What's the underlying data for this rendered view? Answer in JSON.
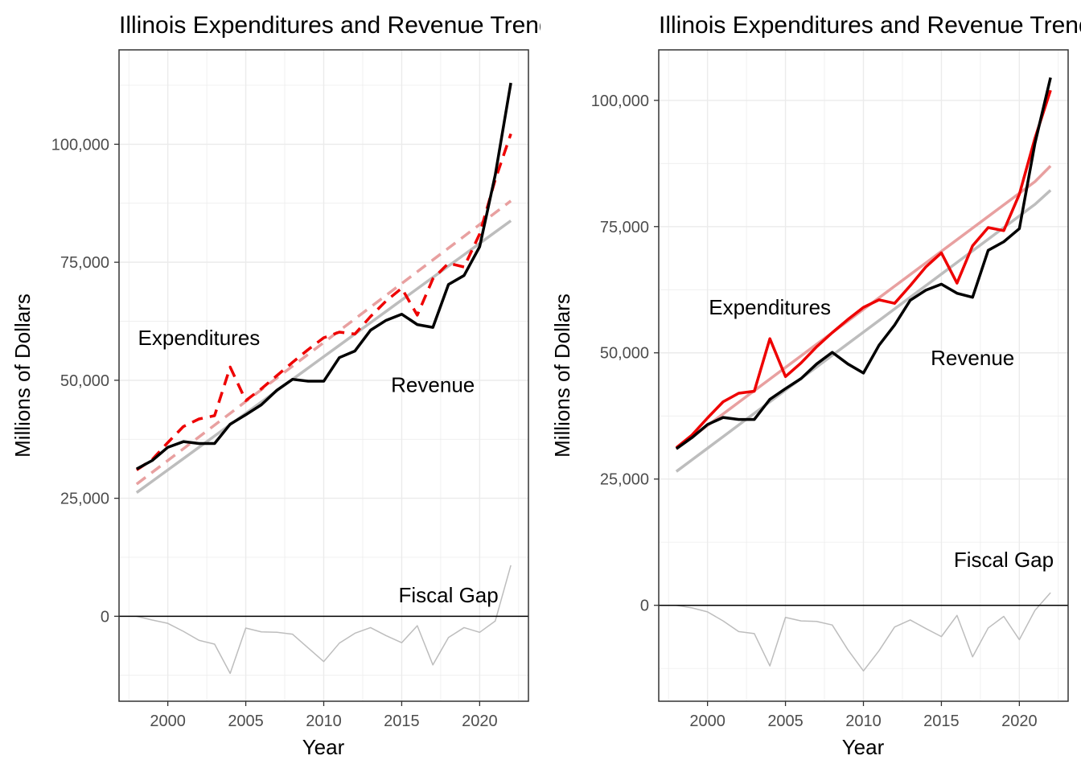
{
  "chart_data": [
    {
      "type": "line",
      "title": "Illinois Expenditures and Revenue Trends",
      "xlabel": "Year",
      "ylabel": "Millions of Dollars",
      "xlim": [
        1998,
        2022
      ],
      "ylim": [
        -18000,
        120000
      ],
      "x_ticks": [
        2000,
        2005,
        2010,
        2015,
        2020
      ],
      "y_ticks": [
        0,
        25000,
        50000,
        75000,
        100000
      ],
      "y_tick_labels": [
        "0",
        "25,000",
        "50,000",
        "75,000",
        "100,000"
      ],
      "grid": true,
      "annotations": [
        {
          "text": "Expenditures",
          "x": 2002,
          "y": 59000
        },
        {
          "text": "Revenue",
          "x": 2017,
          "y": 49000
        },
        {
          "text": "Fiscal Gap",
          "x": 2018,
          "y": 4500
        }
      ],
      "x": [
        1998,
        1999,
        2000,
        2001,
        2002,
        2003,
        2004,
        2005,
        2006,
        2007,
        2008,
        2009,
        2010,
        2011,
        2012,
        2013,
        2014,
        2015,
        2016,
        2017,
        2018,
        2019,
        2020,
        2021,
        2022
      ],
      "series": [
        {
          "key": "expenditures_trend",
          "color": "#e8a0a0",
          "dashed": true,
          "width": 3.5,
          "values": [
            28000,
            30500,
            33000,
            35500,
            38000,
            40500,
            43000,
            45500,
            48000,
            50500,
            53000,
            55500,
            58000,
            60500,
            63000,
            65500,
            68000,
            70500,
            73000,
            75500,
            78000,
            80500,
            83000,
            85500,
            88000
          ]
        },
        {
          "key": "revenue_trend",
          "color": "#bdbdbd",
          "dashed": false,
          "width": 3.5,
          "values": [
            26200,
            28600,
            31000,
            33400,
            35800,
            38200,
            40600,
            43000,
            45400,
            47800,
            50200,
            52600,
            55000,
            57400,
            59800,
            62200,
            64600,
            67000,
            69400,
            71800,
            74200,
            76600,
            79000,
            81400,
            83800
          ]
        },
        {
          "key": "expenditures",
          "color": "#ee0000",
          "dashed": true,
          "width": 3.5,
          "values": [
            31000,
            33200,
            36800,
            40200,
            41800,
            42500,
            52800,
            45700,
            48200,
            51000,
            53800,
            56500,
            59000,
            60200,
            59800,
            63500,
            66800,
            69500,
            63800,
            71500,
            74800,
            74000,
            81000,
            92500,
            102200
          ]
        },
        {
          "key": "revenue",
          "color": "#000000",
          "dashed": false,
          "width": 3.5,
          "values": [
            31200,
            33000,
            35800,
            37000,
            36600,
            36600,
            40700,
            42700,
            44800,
            47900,
            50200,
            49800,
            49800,
            54800,
            56200,
            60600,
            62700,
            64000,
            61800,
            61200,
            70300,
            72200,
            78300,
            93500,
            113000
          ]
        },
        {
          "key": "fiscal_gap",
          "color": "#bdbdbd",
          "dashed": false,
          "width": 1.5,
          "values": [
            0,
            -800,
            -1500,
            -3200,
            -5100,
            -5900,
            -12100,
            -2500,
            -3300,
            -3400,
            -3800,
            -6700,
            -9600,
            -5700,
            -3600,
            -2400,
            -4100,
            -5600,
            -2000,
            -10300,
            -4500,
            -2400,
            -3400,
            -1000,
            10800
          ]
        }
      ]
    },
    {
      "type": "line",
      "title": "Illinois Expenditures and Revenue Trends",
      "xlabel": "Year",
      "ylabel": "Millions of Dollars",
      "xlim": [
        1998,
        2022
      ],
      "ylim": [
        -19000,
        110000
      ],
      "x_ticks": [
        2000,
        2005,
        2010,
        2015,
        2020
      ],
      "y_ticks": [
        0,
        25000,
        50000,
        75000,
        100000
      ],
      "y_tick_labels": [
        "0",
        "25,000",
        "50,000",
        "75,000",
        "100,000"
      ],
      "grid": true,
      "annotations": [
        {
          "text": "Expenditures",
          "x": 2004,
          "y": 59000
        },
        {
          "text": "Revenue",
          "x": 2017,
          "y": 49000
        },
        {
          "text": "Fiscal Gap",
          "x": 2019,
          "y": 9000
        }
      ],
      "x": [
        1998,
        1999,
        2000,
        2001,
        2002,
        2003,
        2004,
        2005,
        2006,
        2007,
        2008,
        2009,
        2010,
        2011,
        2012,
        2013,
        2014,
        2015,
        2016,
        2017,
        2018,
        2019,
        2020,
        2021,
        2022
      ],
      "series": [
        {
          "key": "expenditures_trend",
          "color": "#e8a0a0",
          "dashed": false,
          "width": 3.5,
          "values": [
            31000,
            33300,
            35600,
            37900,
            40200,
            42500,
            44800,
            47100,
            49400,
            51700,
            54000,
            56300,
            58600,
            60900,
            63200,
            65500,
            67800,
            70100,
            72400,
            74700,
            77000,
            79300,
            81600,
            83900,
            87000
          ]
        },
        {
          "key": "revenue_trend",
          "color": "#bdbdbd",
          "dashed": false,
          "width": 3.5,
          "values": [
            26500,
            28800,
            31100,
            33400,
            35700,
            38000,
            40300,
            42600,
            44900,
            47200,
            49500,
            51800,
            54100,
            56400,
            58700,
            61000,
            63300,
            65600,
            67900,
            70200,
            72500,
            74800,
            77100,
            79400,
            82200
          ]
        },
        {
          "key": "expenditures",
          "color": "#ee0000",
          "dashed": false,
          "width": 3.5,
          "values": [
            31200,
            33700,
            37100,
            40300,
            42000,
            42400,
            52800,
            45300,
            48000,
            51200,
            54000,
            56600,
            59000,
            60500,
            59800,
            63300,
            67000,
            69800,
            63800,
            71200,
            74800,
            74200,
            81400,
            92500,
            102000
          ]
        },
        {
          "key": "revenue",
          "color": "#000000",
          "dashed": false,
          "width": 3.5,
          "values": [
            31000,
            33200,
            35800,
            37200,
            36800,
            36800,
            40800,
            42900,
            44900,
            47800,
            50100,
            47800,
            46000,
            51500,
            55500,
            60400,
            62400,
            63600,
            61800,
            61000,
            70300,
            72000,
            74600,
            91500,
            104500
          ]
        },
        {
          "key": "fiscal_gap",
          "color": "#bdbdbd",
          "dashed": false,
          "width": 1.5,
          "values": [
            0,
            -500,
            -1300,
            -3100,
            -5200,
            -5600,
            -12000,
            -2400,
            -3100,
            -3200,
            -3900,
            -8800,
            -13000,
            -9000,
            -4300,
            -2900,
            -4600,
            -6200,
            -2000,
            -10200,
            -4500,
            -2200,
            -6800,
            -1000,
            2500
          ]
        }
      ]
    }
  ]
}
